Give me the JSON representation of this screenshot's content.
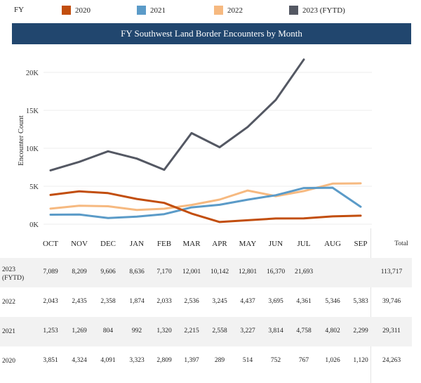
{
  "legend": {
    "label": "FY",
    "items": [
      {
        "name": "2020",
        "color": "#c24e0e"
      },
      {
        "name": "2021",
        "color": "#5b9bc8"
      },
      {
        "name": "2022",
        "color": "#f6b980"
      },
      {
        "name": "2023 (FYTD)",
        "color": "#545863"
      }
    ]
  },
  "chart_data": {
    "type": "line",
    "title": "FY Southwest Land Border Encounters by Month",
    "ylabel": "Encounter Count",
    "xlabel": "",
    "ylim": [
      0,
      22000
    ],
    "yticks": [
      "0K",
      "5K",
      "10K",
      "15K",
      "20K"
    ],
    "categories": [
      "OCT",
      "NOV",
      "DEC",
      "JAN",
      "FEB",
      "MAR",
      "APR",
      "MAY",
      "JUN",
      "JUL",
      "AUG",
      "SEP"
    ],
    "series": [
      {
        "name": "2023 (FYTD)",
        "color": "#545863",
        "values": [
          7089,
          8209,
          9606,
          8636,
          7170,
          12001,
          10142,
          12801,
          16370,
          21693,
          null,
          null
        ]
      },
      {
        "name": "2022",
        "color": "#f6b980",
        "values": [
          2043,
          2435,
          2358,
          1874,
          2033,
          2536,
          3245,
          4437,
          3695,
          4361,
          5346,
          5383
        ]
      },
      {
        "name": "2021",
        "color": "#5b9bc8",
        "values": [
          1253,
          1269,
          804,
          992,
          1320,
          2215,
          2558,
          3227,
          3814,
          4758,
          4802,
          2299
        ]
      },
      {
        "name": "2020",
        "color": "#c24e0e",
        "values": [
          3851,
          4324,
          4091,
          3323,
          2809,
          1397,
          289,
          514,
          752,
          767,
          1026,
          1120
        ]
      }
    ]
  },
  "table": {
    "total_label": "Total",
    "rows": [
      {
        "label_line1": "2023",
        "label_line2": "(FYTD)",
        "cells": [
          "7,089",
          "8,209",
          "9,606",
          "8,636",
          "7,170",
          "12,001",
          "10,142",
          "12,801",
          "16,370",
          "21,693",
          "",
          ""
        ],
        "total": "113,717"
      },
      {
        "label_line1": "2022",
        "label_line2": "",
        "cells": [
          "2,043",
          "2,435",
          "2,358",
          "1,874",
          "2,033",
          "2,536",
          "3,245",
          "4,437",
          "3,695",
          "4,361",
          "5,346",
          "5,383"
        ],
        "total": "39,746"
      },
      {
        "label_line1": "2021",
        "label_line2": "",
        "cells": [
          "1,253",
          "1,269",
          "804",
          "992",
          "1,320",
          "2,215",
          "2,558",
          "3,227",
          "3,814",
          "4,758",
          "4,802",
          "2,299"
        ],
        "total": "29,311"
      },
      {
        "label_line1": "2020",
        "label_line2": "",
        "cells": [
          "3,851",
          "4,324",
          "4,091",
          "3,323",
          "2,809",
          "1,397",
          "289",
          "514",
          "752",
          "767",
          "1,026",
          "1,120"
        ],
        "total": "24,263"
      }
    ]
  }
}
